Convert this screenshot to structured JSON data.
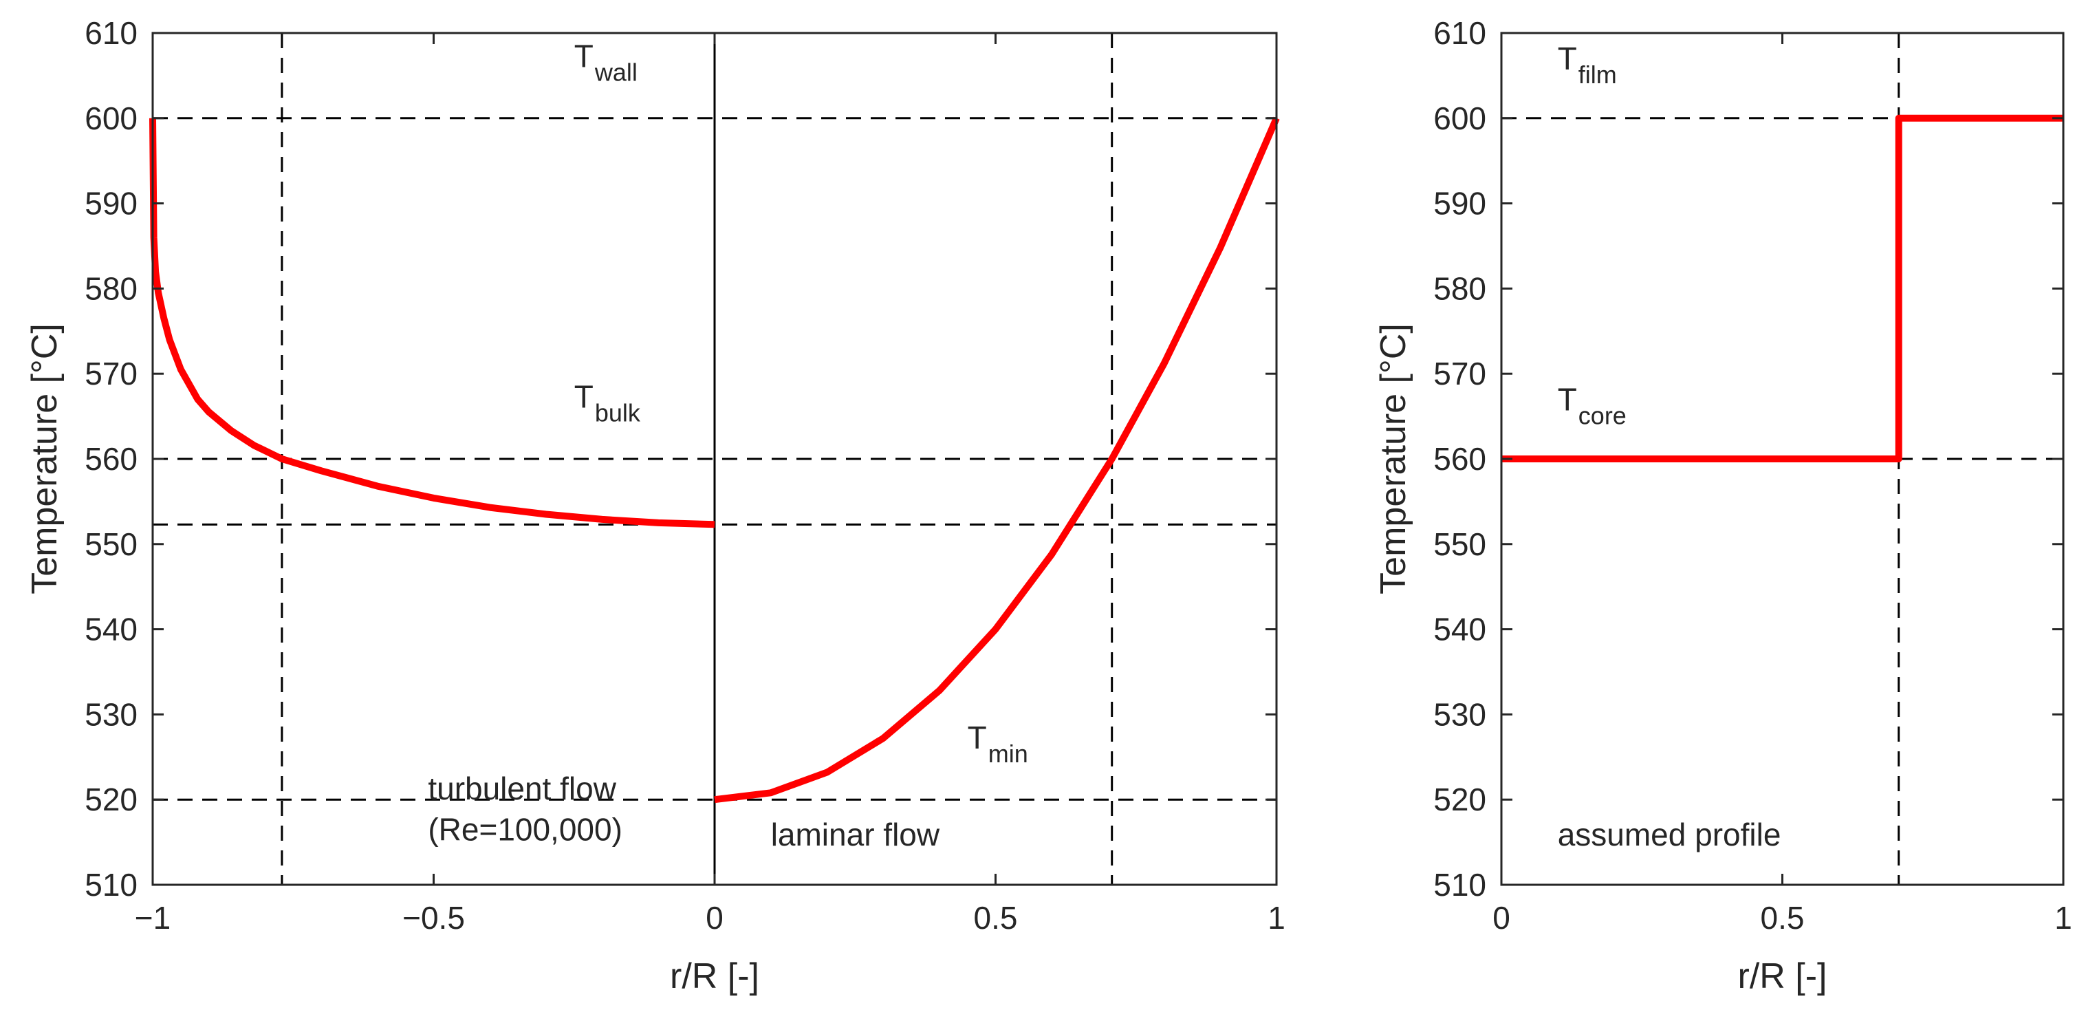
{
  "chart_data": [
    {
      "type": "line",
      "xlabel": "r/R [-]",
      "ylabel": "Temperature [°C]",
      "xlim": [
        -1,
        1
      ],
      "ylim": [
        510,
        610
      ],
      "x_ticks": [
        "−1",
        "−0.5",
        "0",
        "0.5",
        "1"
      ],
      "y_ticks": [
        "510",
        "520",
        "530",
        "540",
        "550",
        "560",
        "570",
        "580",
        "590",
        "600",
        "610"
      ],
      "grid": false,
      "series": [
        {
          "color": "#ff0000",
          "x": [
            -1.0,
            -0.998,
            -0.995,
            -0.99,
            -0.98,
            -0.97,
            -0.95,
            -0.92,
            -0.9,
            -0.86,
            -0.82,
            -0.77,
            -0.7,
            -0.6,
            -0.5,
            -0.4,
            -0.3,
            -0.2,
            -0.1,
            0.0
          ],
          "y": [
            600,
            586,
            582,
            579.5,
            576.5,
            574,
            570.5,
            567,
            565.5,
            563.3,
            561.6,
            560,
            558.6,
            556.8,
            555.4,
            554.3,
            553.5,
            552.9,
            552.5,
            552.3
          ]
        },
        {
          "color": "#ff0000",
          "x": [
            0.0,
            0.1,
            0.2,
            0.3,
            0.4,
            0.5,
            0.6,
            0.7071,
            0.8,
            0.9,
            1.0
          ],
          "y": [
            520,
            520.8,
            523.2,
            527.2,
            532.8,
            540,
            548.8,
            560,
            571.2,
            584.8,
            600
          ]
        }
      ],
      "reference_lines": {
        "horizontal": [
          600,
          560,
          552.3,
          520
        ],
        "vertical": [
          -0.77,
          0.7071
        ],
        "solid_vertical": [
          0
        ]
      },
      "annotations": [
        {
          "text": "T",
          "sub": "wall",
          "x": -0.25,
          "y": 606
        },
        {
          "text": "T",
          "sub": "bulk",
          "x": -0.25,
          "y": 566
        },
        {
          "text": "T",
          "sub": "min",
          "x": 0.45,
          "y": 526
        },
        {
          "text": "turbulent flow",
          "x": -0.51,
          "y": 520
        },
        {
          "text": "(Re=100,000)",
          "x": -0.51,
          "y": 515.2
        },
        {
          "text": "laminar flow",
          "x": 0.1,
          "y": 514.6
        }
      ]
    },
    {
      "type": "line",
      "xlabel": "r/R [-]",
      "ylabel": "Temperature [°C]",
      "xlim": [
        0,
        1
      ],
      "ylim": [
        510,
        610
      ],
      "x_ticks": [
        "0",
        "0.5",
        "1"
      ],
      "y_ticks": [
        "510",
        "520",
        "530",
        "540",
        "550",
        "560",
        "570",
        "580",
        "590",
        "600",
        "610"
      ],
      "grid": false,
      "series": [
        {
          "color": "#ff0000",
          "x": [
            0.0,
            0.7071,
            0.7071,
            1.0
          ],
          "y": [
            560,
            560,
            600,
            600
          ]
        }
      ],
      "reference_lines": {
        "horizontal": [
          600,
          560
        ],
        "vertical": [
          0.7071
        ]
      },
      "annotations": [
        {
          "text": "T",
          "sub": "film",
          "x": 0.1,
          "y": 605.7
        },
        {
          "text": "T",
          "sub": "core",
          "x": 0.1,
          "y": 565.7
        },
        {
          "text": "assumed profile",
          "x": 0.1,
          "y": 514.6
        }
      ]
    }
  ]
}
